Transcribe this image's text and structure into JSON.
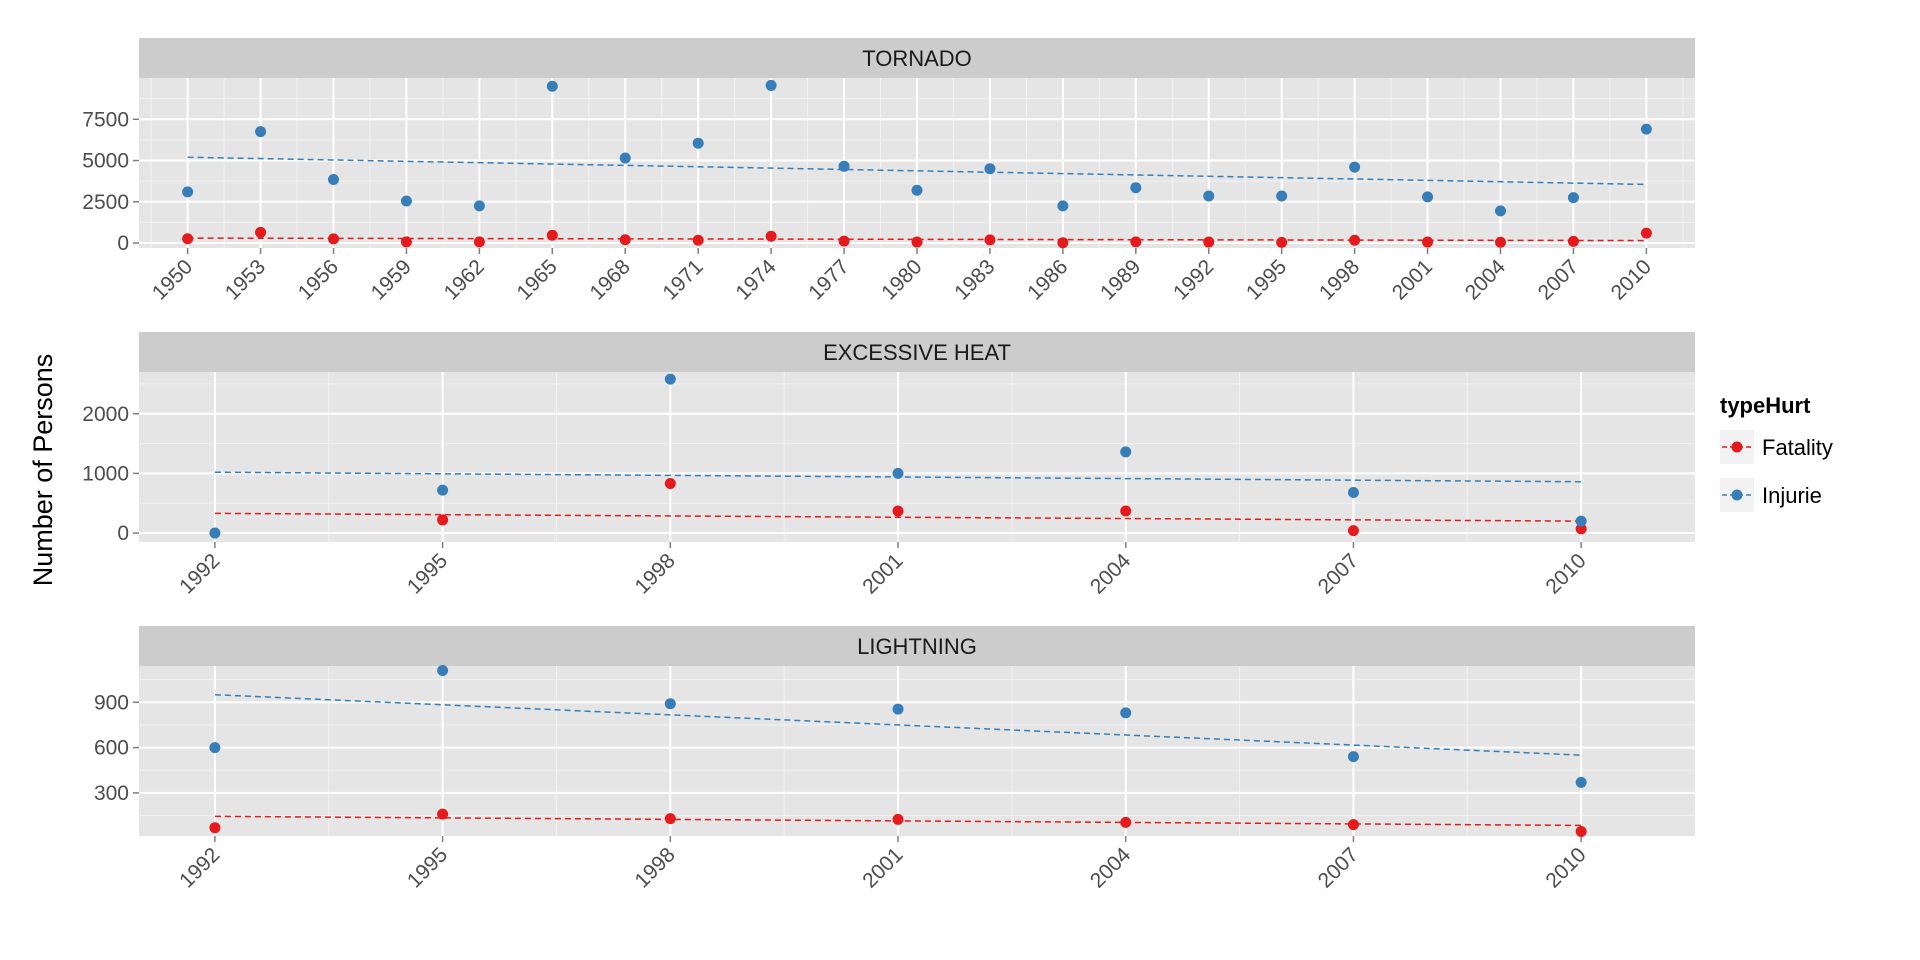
{
  "chart_data": {
    "type": "scatter",
    "ylabel": "Number of Persons",
    "legend": {
      "title": "typeHurt",
      "placement": "right",
      "entries": [
        {
          "name": "Fatality",
          "color": "#e41a1c"
        },
        {
          "name": "Injurie",
          "color": "#377eb8"
        }
      ]
    },
    "trend_lines": "dashed linear fit per series",
    "grid": true,
    "facets": [
      {
        "title": "TORNADO",
        "xlim": [
          1948,
          2012
        ],
        "ylim": [
          -300,
          10000
        ],
        "x_ticks": [
          1950,
          1953,
          1956,
          1959,
          1962,
          1965,
          1968,
          1971,
          1974,
          1977,
          1980,
          1983,
          1986,
          1989,
          1992,
          1995,
          1998,
          2001,
          2004,
          2007,
          2010
        ],
        "y_ticks": [
          0,
          2500,
          5000,
          7500
        ],
        "y_tick_labels": [
          "0",
          "2500",
          "5000",
          "7500"
        ],
        "series": [
          {
            "name": "Fatality",
            "x": [
              1950,
              1953,
              1956,
              1959,
              1962,
              1965,
              1968,
              1971,
              1974,
              1977,
              1980,
              1983,
              1986,
              1989,
              1992,
              1995,
              1998,
              2001,
              2004,
              2007,
              2010
            ],
            "y": [
              260,
              650,
              250,
              70,
              70,
              470,
              200,
              170,
              410,
              120,
              60,
              190,
              20,
              70,
              60,
              40,
              170,
              60,
              50,
              100,
              600
            ],
            "trend": [
              300,
              150
            ]
          },
          {
            "name": "Injurie",
            "x": [
              1950,
              1953,
              1956,
              1959,
              1962,
              1965,
              1968,
              1971,
              1974,
              1977,
              1980,
              1983,
              1986,
              1989,
              1992,
              1995,
              1998,
              2001,
              2004,
              2007,
              2010
            ],
            "y": [
              3100,
              6750,
              3850,
              2550,
              2250,
              9500,
              5150,
              6050,
              9550,
              4650,
              3200,
              4500,
              2250,
              3350,
              2850,
              2850,
              4600,
              2800,
              1950,
              2750,
              6900
            ],
            "trend": [
              5200,
              3550
            ]
          }
        ]
      },
      {
        "title": "EXCESSIVE HEAT",
        "xlim": [
          1991,
          2011.5
        ],
        "ylim": [
          -150,
          2700
        ],
        "x_ticks": [
          1992,
          1995,
          1998,
          2001,
          2004,
          2007,
          2010
        ],
        "y_ticks": [
          0,
          1000,
          2000
        ],
        "y_tick_labels": [
          "0",
          "1000",
          "2000"
        ],
        "series": [
          {
            "name": "Fatality",
            "x": [
              1995,
              1998,
              2001,
              2004,
              2007,
              2010
            ],
            "y": [
              220,
              830,
              370,
              370,
              40,
              70
            ],
            "trend": [
              330,
              200
            ]
          },
          {
            "name": "Injurie",
            "x": [
              1992,
              1995,
              1998,
              2001,
              2004,
              2007,
              2010
            ],
            "y": [
              0,
              720,
              2580,
              1000,
              1360,
              680,
              200
            ],
            "trend": [
              1020,
              860
            ]
          }
        ]
      },
      {
        "title": "LIGHTNING",
        "xlim": [
          1991,
          2011.5
        ],
        "ylim": [
          15,
          1140
        ],
        "x_ticks": [
          1992,
          1995,
          1998,
          2001,
          2004,
          2007,
          2010
        ],
        "y_ticks": [
          300,
          600,
          900
        ],
        "y_tick_labels": [
          "300",
          "600",
          "900"
        ],
        "series": [
          {
            "name": "Fatality",
            "x": [
              1992,
              1995,
              1998,
              2001,
              2004,
              2007,
              2010
            ],
            "y": [
              70,
              160,
              130,
              125,
              105,
              90,
              45
            ],
            "trend": [
              145,
              85
            ]
          },
          {
            "name": "Injurie",
            "x": [
              1992,
              1995,
              1998,
              2001,
              2004,
              2007,
              2010
            ],
            "y": [
              600,
              1110,
              890,
              855,
              830,
              540,
              370
            ],
            "trend": [
              950,
              550
            ]
          }
        ]
      }
    ]
  }
}
